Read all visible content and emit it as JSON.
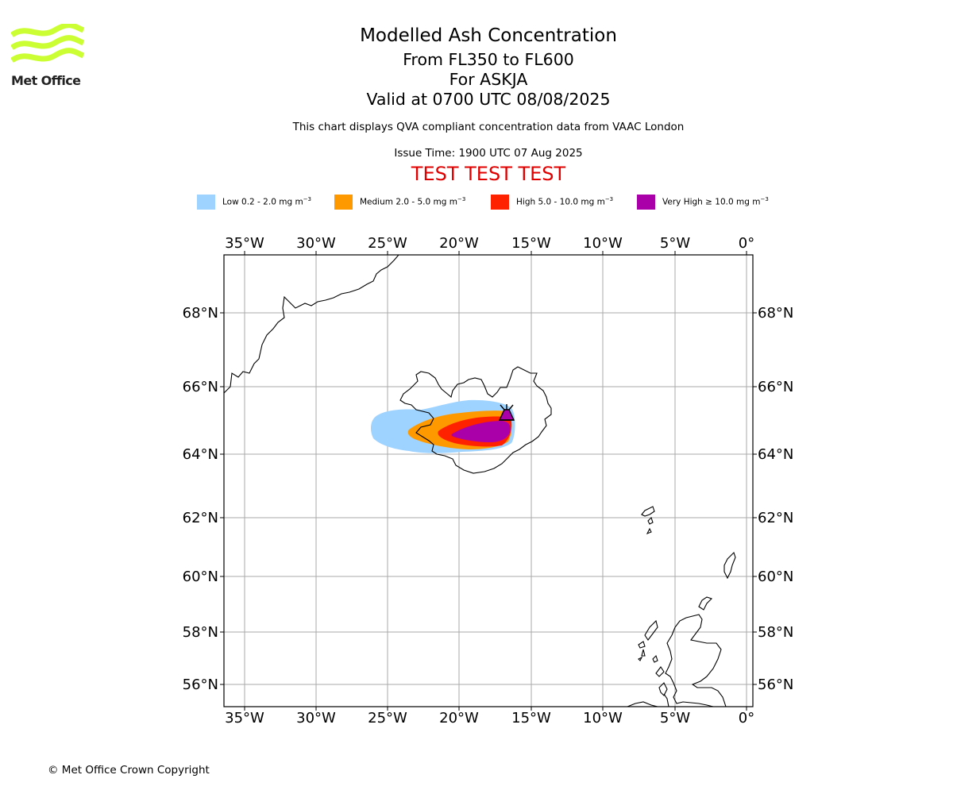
{
  "logo": {
    "text": "Met Office",
    "color": "#ccff33"
  },
  "header": {
    "title": "Modelled Ash Concentration",
    "levels": "From FL350 to FL600",
    "volcano": "For ASKJA",
    "valid": "Valid at 0700 UTC 08/08/2025",
    "disclaimer": "This chart displays QVA compliant concentration data from VAAC London",
    "issue": "Issue Time: 1900 UTC 07 Aug 2025",
    "test_banner": "TEST TEST TEST"
  },
  "legend": [
    {
      "label": "Low 0.2 - 2.0 mg m",
      "exp": "−3",
      "color": "#9fd3ff"
    },
    {
      "label": "Medium 2.0 - 5.0 mg m",
      "exp": "−3",
      "color": "#ff9900"
    },
    {
      "label": "High 5.0 - 10.0 mg m",
      "exp": "−3",
      "color": "#ff2200"
    },
    {
      "label": "Very High  ≥  10.0 mg m",
      "exp": "−3",
      "color": "#aa00aa"
    }
  ],
  "map": {
    "lon_ticks": [
      "35°W",
      "30°W",
      "25°W",
      "20°W",
      "15°W",
      "10°W",
      "5°W",
      "0°"
    ],
    "lat_ticks": [
      "68°N",
      "66°N",
      "64°N",
      "62°N",
      "60°N",
      "58°N",
      "56°N"
    ],
    "volcano_icon": "volcano-icon",
    "grid_color": "#aaaaaa"
  },
  "footer": {
    "copyright": "© Met Office Crown Copyright"
  }
}
